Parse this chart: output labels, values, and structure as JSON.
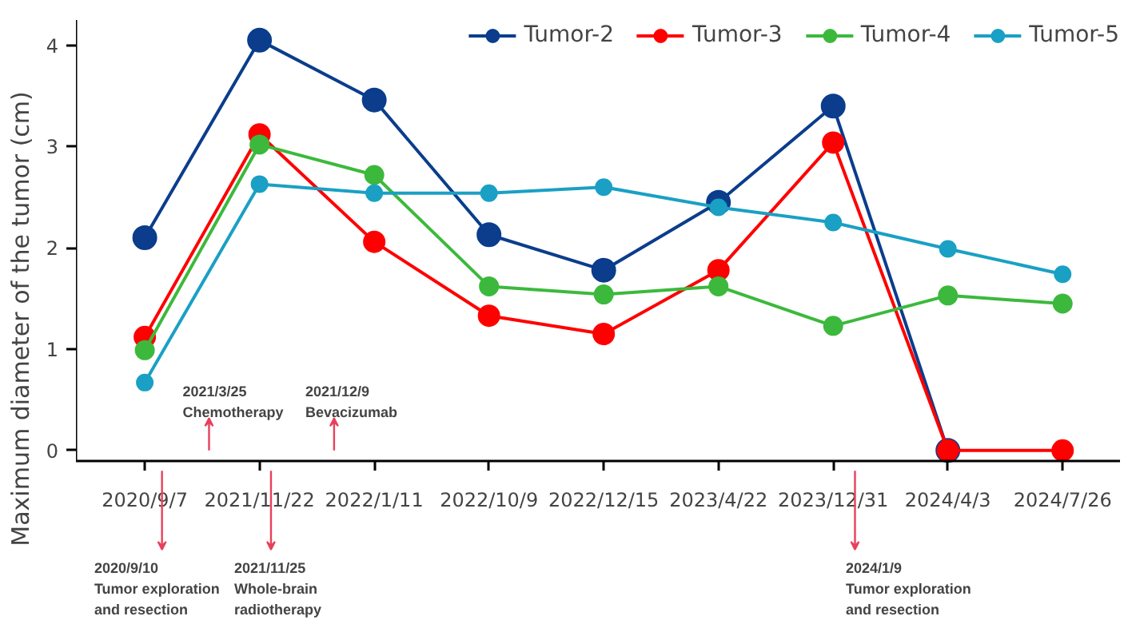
{
  "chart_data": {
    "type": "line",
    "ylabel": "Maximum diameter of the tumor (cm)",
    "categories": [
      "2020/9/7",
      "2021/11/22",
      "2022/1/11",
      "2022/10/9",
      "2022/12/15",
      "2023/4/22",
      "2023/12/31",
      "2024/4/3",
      "2024/7/26"
    ],
    "series": [
      {
        "name": "Tumor-2",
        "color": "#0b3d8c",
        "values": [
          2.1,
          4.05,
          3.46,
          2.13,
          1.78,
          2.45,
          3.4,
          0,
          null
        ]
      },
      {
        "name": "Tumor-3",
        "color": "#ff0000",
        "values": [
          1.12,
          3.12,
          2.06,
          1.33,
          1.15,
          1.78,
          3.04,
          0,
          0
        ]
      },
      {
        "name": "Tumor-4",
        "color": "#3cb93c",
        "values": [
          0.99,
          3.02,
          2.72,
          1.62,
          1.54,
          1.62,
          1.23,
          1.53,
          1.45
        ]
      },
      {
        "name": "Tumor-5",
        "color": "#1aa0c4",
        "values": [
          0.67,
          2.63,
          2.54,
          2.54,
          2.6,
          2.4,
          2.25,
          1.99,
          1.74
        ]
      }
    ],
    "ylim": [
      -0.1,
      4.25
    ],
    "yticks": [
      0,
      1,
      2,
      3,
      4
    ],
    "grid": false,
    "legend": "top",
    "marker": "circle",
    "line_style": "solid",
    "annotations": [
      "2020/9/10\nTumor exploration\nand resection",
      "2021/3/25\nChemotherapy",
      "2021/11/25\nWhole-brain\nradiotherapy",
      "2021/12/9\nBevacizumab",
      "2024/1/9\nTumor exploration\nand resection"
    ]
  }
}
